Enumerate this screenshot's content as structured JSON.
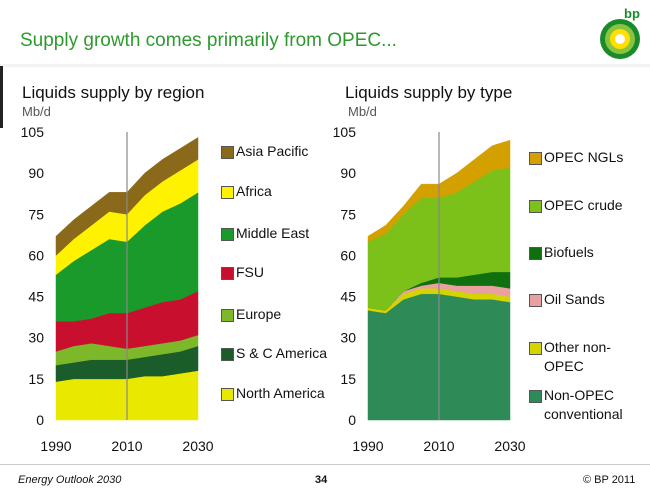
{
  "title": "Supply growth comes primarily from OPEC...",
  "logo_text": "bp",
  "footer": {
    "left": "Energy Outlook 2030",
    "page": "34",
    "right": "© BP 2011"
  },
  "chart_data": [
    {
      "type": "area",
      "title": "Liquids supply by region",
      "ylabel": "Mb/d",
      "ylim": [
        0,
        105
      ],
      "yticks": [
        "105",
        "90",
        "75",
        "60",
        "45",
        "30",
        "15",
        "0"
      ],
      "xticks": [
        "1990",
        "2010",
        "2030"
      ],
      "x": [
        1990,
        1995,
        2000,
        2005,
        2010,
        2015,
        2020,
        2025,
        2030
      ],
      "series": [
        {
          "name": "North America",
          "color": "#e8e800",
          "values": [
            14,
            15,
            15,
            15,
            15,
            16,
            16,
            17,
            18
          ]
        },
        {
          "name": "S & C America",
          "color": "#1a5c2a",
          "values": [
            6,
            6,
            7,
            7,
            7,
            7,
            8,
            8,
            9
          ]
        },
        {
          "name": "Europe",
          "color": "#7cb82a",
          "values": [
            5,
            6,
            6,
            5,
            4,
            4,
            4,
            4,
            4
          ]
        },
        {
          "name": "FSU",
          "color": "#c8102e",
          "values": [
            11,
            9,
            9,
            12,
            13,
            14,
            15,
            15,
            16
          ]
        },
        {
          "name": "Middle East",
          "color": "#1a9a2a",
          "values": [
            17,
            22,
            25,
            27,
            26,
            30,
            33,
            35,
            36
          ]
        },
        {
          "name": "Africa",
          "color": "#fff200",
          "values": [
            7,
            8,
            9,
            10,
            10,
            11,
            11,
            12,
            12
          ]
        },
        {
          "name": "Asia Pacific",
          "color": "#8a6a1a",
          "values": [
            7,
            7,
            7,
            7,
            8,
            8,
            8,
            8,
            8
          ]
        }
      ],
      "legend": [
        "Asia Pacific",
        "Africa",
        "Middle East",
        "FSU",
        "Europe",
        "S & C America",
        "North America"
      ]
    },
    {
      "type": "area",
      "title": "Liquids supply by type",
      "ylabel": "Mb/d",
      "ylim": [
        0,
        105
      ],
      "yticks": [
        "105",
        "90",
        "75",
        "60",
        "45",
        "30",
        "15",
        "0"
      ],
      "xticks": [
        "1990",
        "2010",
        "2030"
      ],
      "x": [
        1990,
        1995,
        2000,
        2005,
        2010,
        2015,
        2020,
        2025,
        2030
      ],
      "series": [
        {
          "name": "Non-OPEC conventional",
          "color": "#2e8b57",
          "values": [
            40,
            39,
            44,
            46,
            46,
            45,
            44,
            44,
            43
          ]
        },
        {
          "name": "Other non-OPEC",
          "color": "#d4d400",
          "values": [
            1,
            1,
            2,
            2,
            2,
            2,
            2,
            2,
            2
          ]
        },
        {
          "name": "Oil Sands",
          "color": "#e8a0a0",
          "values": [
            0,
            0,
            1,
            1,
            2,
            2,
            3,
            3,
            3
          ]
        },
        {
          "name": "Biofuels",
          "color": "#107010",
          "values": [
            0,
            0,
            0,
            1,
            2,
            3,
            4,
            5,
            6
          ]
        },
        {
          "name": "OPEC crude",
          "color": "#7cc01a",
          "values": [
            24,
            28,
            28,
            31,
            29,
            31,
            34,
            37,
            38
          ]
        },
        {
          "name": "OPEC NGLs",
          "color": "#d4a000",
          "values": [
            2,
            3,
            3,
            5,
            5,
            7,
            8,
            9,
            10
          ]
        }
      ],
      "legend": [
        "OPEC NGLs",
        "OPEC crude",
        "Biofuels",
        "Oil Sands",
        "Other non-OPEC",
        "Non-OPEC conventional"
      ]
    }
  ]
}
